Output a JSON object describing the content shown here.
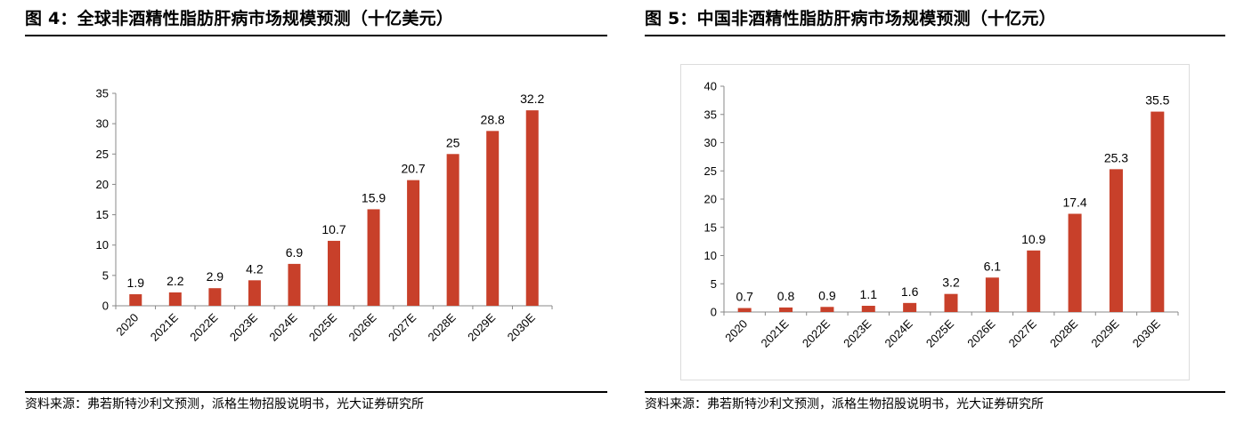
{
  "colors": {
    "bar": "#C8402A",
    "axis": "#888888",
    "text": "#000000"
  },
  "panels": [
    {
      "title": "图 4：全球非酒精性脂肪肝病市场规模预测（十亿美元）",
      "source": "资料来源：弗若斯特沙利文预测，派格生物招股说明书，光大证券研究所"
    },
    {
      "title": "图 5：中国非酒精性脂肪肝病市场规模预测（十亿元）",
      "source": "资料来源：弗若斯特沙利文预测，派格生物招股说明书，光大证券研究所"
    }
  ],
  "chart_data": [
    {
      "type": "bar",
      "title": "",
      "xlabel": "",
      "ylabel": "",
      "categories": [
        "2020",
        "2021E",
        "2022E",
        "2023E",
        "2024E",
        "2025E",
        "2026E",
        "2027E",
        "2028E",
        "2029E",
        "2030E"
      ],
      "values": [
        1.9,
        2.2,
        2.9,
        4.2,
        6.9,
        10.7,
        15.9,
        20.7,
        25,
        28.8,
        32.2
      ],
      "value_labels": [
        "1.9",
        "2.2",
        "2.9",
        "4.2",
        "6.9",
        "10.7",
        "15.9",
        "20.7",
        "25",
        "28.8",
        "32.2"
      ],
      "ylim": [
        0,
        35
      ],
      "yticks": [
        "0",
        "5",
        "10",
        "15",
        "20",
        "25",
        "30",
        "35"
      ],
      "grid": false,
      "legend": "none",
      "bar_color": "#C8402A"
    },
    {
      "type": "bar",
      "title": "",
      "xlabel": "",
      "ylabel": "",
      "categories": [
        "2020",
        "2021E",
        "2022E",
        "2023E",
        "2024E",
        "2025E",
        "2026E",
        "2027E",
        "2028E",
        "2029E",
        "2030E"
      ],
      "values": [
        0.7,
        0.8,
        0.9,
        1.1,
        1.6,
        3.2,
        6.1,
        10.9,
        17.4,
        25.3,
        35.5
      ],
      "value_labels": [
        "0.7",
        "0.8",
        "0.9",
        "1.1",
        "1.6",
        "3.2",
        "6.1",
        "10.9",
        "17.4",
        "25.3",
        "35.5"
      ],
      "ylim": [
        0,
        40
      ],
      "yticks": [
        "0",
        "5",
        "10",
        "15",
        "20",
        "25",
        "30",
        "35",
        "40"
      ],
      "grid": false,
      "legend": "none",
      "bar_color": "#C8402A"
    }
  ]
}
